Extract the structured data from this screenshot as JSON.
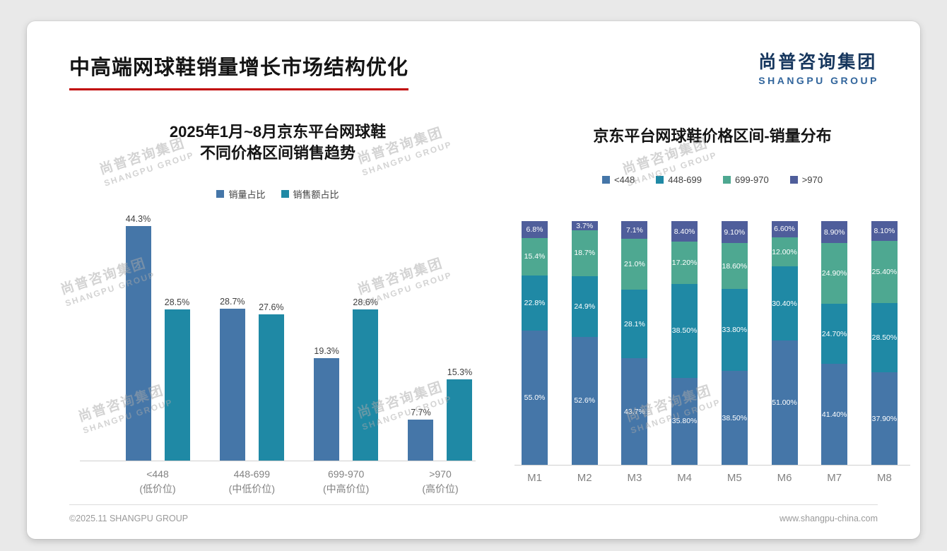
{
  "page": {
    "title": "中高端网球鞋销量增长市场结构优化",
    "logo": {
      "cn": "尚普咨询集团",
      "en": "SHANGPU GROUP"
    },
    "watermark": {
      "cn": "尚普咨询集团",
      "en": "SHANGPU GROUP"
    },
    "footer": {
      "left": "©2025.11 SHANGPU GROUP",
      "right": "www.shangpu-china.com"
    }
  },
  "colors": {
    "accent_red": "#c00000",
    "logo_navy": "#17375e",
    "blue": "#4576a8",
    "teal": "#1f89a5",
    "green": "#4ea891",
    "dark_blue": "#4f5e9b"
  },
  "chart_data": [
    {
      "type": "bar",
      "title_lines": [
        "2025年1月~8月京东平台网球鞋",
        "不同价格区间销售趋势"
      ],
      "categories": [
        "<448",
        "448-699",
        "699-970",
        ">970"
      ],
      "category_sublabels": [
        "(低价位)",
        "(中低价位)",
        "(中高价位)",
        "(高价位)"
      ],
      "series": [
        {
          "name": "销量占比",
          "color": "#4576a8",
          "values": [
            44.3,
            28.7,
            19.3,
            7.7
          ]
        },
        {
          "name": "销售额占比",
          "color": "#1f89a5",
          "values": [
            28.5,
            27.6,
            28.6,
            15.3
          ]
        }
      ],
      "value_suffix": "%",
      "ylim": [
        0,
        50
      ],
      "legend_position": "top",
      "grid": false
    },
    {
      "type": "stacked-bar",
      "title": "京东平台网球鞋价格区间-销量分布",
      "categories": [
        "M1",
        "M2",
        "M3",
        "M4",
        "M5",
        "M6",
        "M7",
        "M8"
      ],
      "series": [
        {
          "name": "<448",
          "color": "#4576a8",
          "values": [
            55.0,
            52.6,
            43.7,
            35.8,
            38.5,
            51.0,
            41.4,
            37.9
          ],
          "labels": [
            "55.0%",
            "52.6%",
            "43.7%",
            "35.80%",
            "38.50%",
            "51.00%",
            "41.40%",
            "37.90%"
          ]
        },
        {
          "name": "448-699",
          "color": "#1f89a5",
          "values": [
            22.8,
            24.9,
            28.1,
            38.5,
            33.8,
            30.4,
            24.7,
            28.5
          ],
          "labels": [
            "22.8%",
            "24.9%",
            "28.1%",
            "38.50%",
            "33.80%",
            "30.40%",
            "24.70%",
            "28.50%"
          ]
        },
        {
          "name": "699-970",
          "color": "#4ea891",
          "values": [
            15.4,
            18.7,
            21.0,
            17.2,
            18.6,
            12.0,
            24.9,
            25.4
          ],
          "labels": [
            "15.4%",
            "18.7%",
            "21.0%",
            "17.20%",
            "18.60%",
            "12.00%",
            "24.90%",
            "25.40%"
          ]
        },
        {
          "name": ">970",
          "color": "#4f5e9b",
          "values": [
            6.8,
            3.7,
            7.1,
            8.4,
            9.1,
            6.6,
            8.9,
            8.1
          ],
          "labels": [
            "6.8%",
            "3.7%",
            "7.1%",
            "8.40%",
            "9.10%",
            "6.60%",
            "8.90%",
            "8.10%"
          ]
        }
      ],
      "ylim": [
        0,
        100
      ],
      "legend_position": "top",
      "grid": false
    }
  ]
}
